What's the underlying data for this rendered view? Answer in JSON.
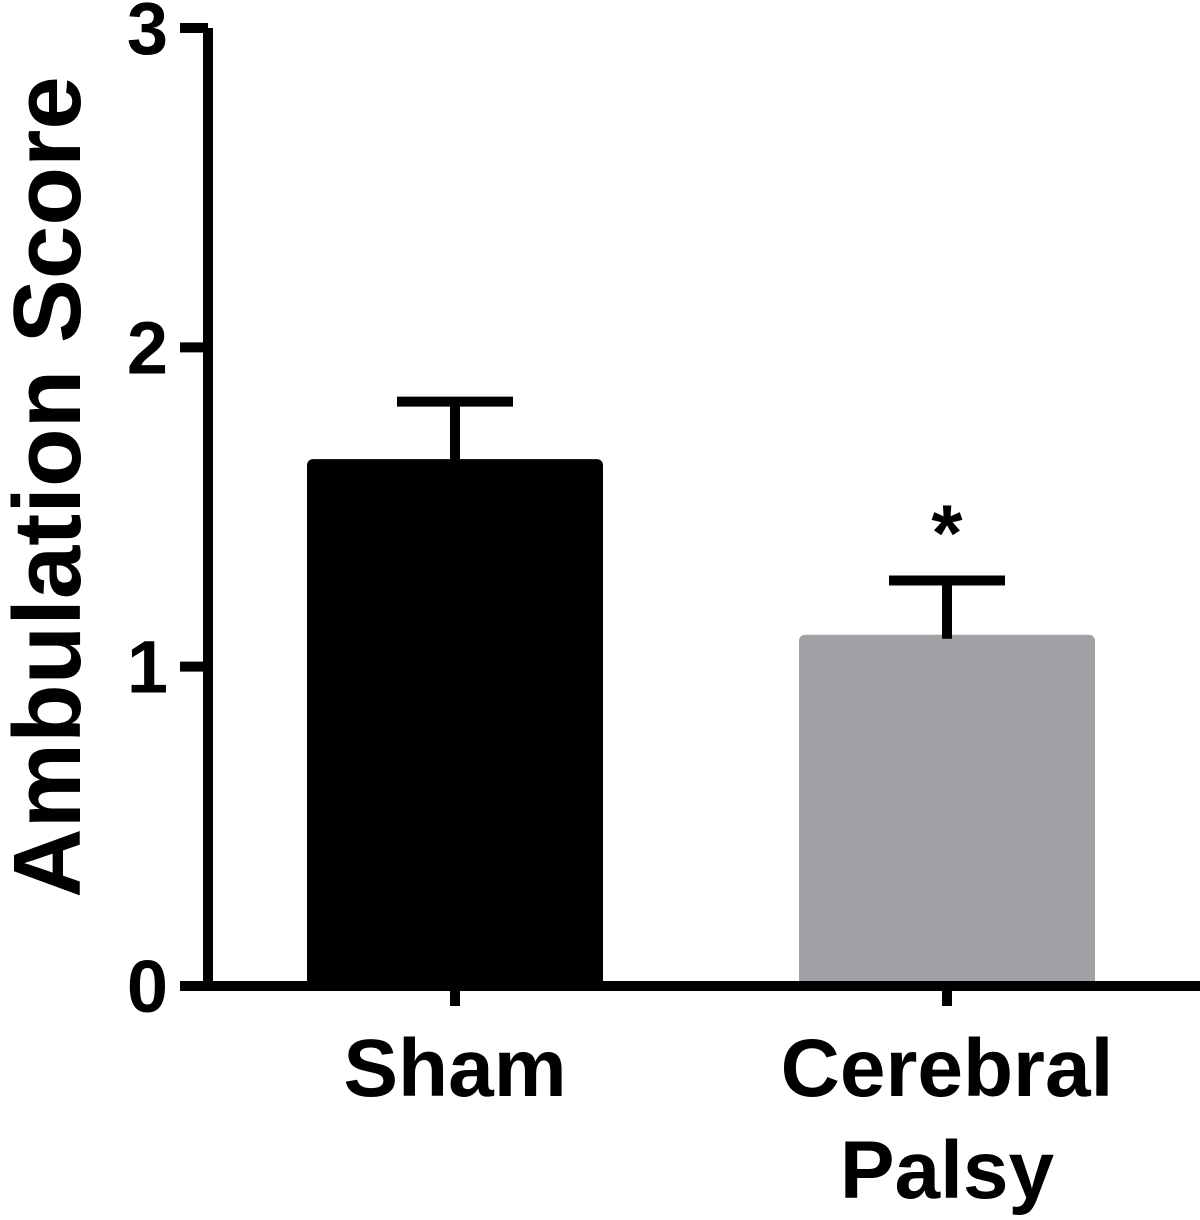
{
  "chart_data": {
    "type": "bar",
    "title": "",
    "xlabel": "",
    "ylabel": "Ambulation Score",
    "ylim": [
      0,
      3
    ],
    "yticks": [
      "0",
      "1",
      "2",
      "3"
    ],
    "grid": false,
    "categories": [
      {
        "lines": [
          "Sham"
        ]
      },
      {
        "lines": [
          "Cerebral",
          "Palsy"
        ]
      }
    ],
    "values": [
      1.65,
      1.1
    ],
    "error_upper": [
      0.18,
      0.17
    ],
    "colors": [
      "#000000",
      "#a1a0a5"
    ],
    "annotations": [
      "",
      "*"
    ]
  }
}
